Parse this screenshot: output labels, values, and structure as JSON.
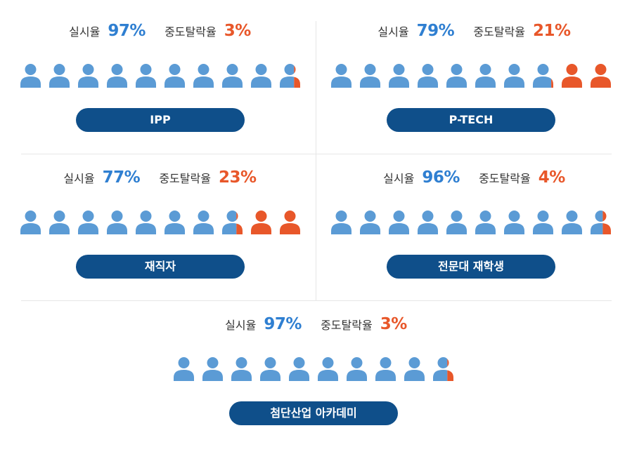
{
  "colors": {
    "completion": "#5b9bd5",
    "dropout": "#e8572a",
    "button": "#0f4f8a"
  },
  "chart_data": [
    {
      "type": "pictograph",
      "category": "IPP",
      "completion_label": "실시율",
      "completion_rate": "97%",
      "completion_value": 97,
      "dropout_label": "중도탈락율",
      "dropout_rate": "3%",
      "dropout_value": 3,
      "icon_count": 10
    },
    {
      "type": "pictograph",
      "category": "P-TECH",
      "completion_label": "실시율",
      "completion_rate": "79%",
      "completion_value": 79,
      "dropout_label": "중도탈락율",
      "dropout_rate": "21%",
      "dropout_value": 21,
      "icon_count": 10
    },
    {
      "type": "pictograph",
      "category": "재직자",
      "completion_label": "실시율",
      "completion_rate": "77%",
      "completion_value": 77,
      "dropout_label": "중도탈락율",
      "dropout_rate": "23%",
      "dropout_value": 23,
      "icon_count": 10
    },
    {
      "type": "pictograph",
      "category": "전문대 재학생",
      "completion_label": "실시율",
      "completion_rate": "96%",
      "completion_value": 96,
      "dropout_label": "중도탈락율",
      "dropout_rate": "4%",
      "dropout_value": 4,
      "icon_count": 10
    },
    {
      "type": "pictograph",
      "category": "첨단산업 아카데미",
      "completion_label": "실시율",
      "completion_rate": "97%",
      "completion_value": 97,
      "dropout_label": "중도탈락율",
      "dropout_rate": "3%",
      "dropout_value": 3,
      "icon_count": 10
    }
  ]
}
